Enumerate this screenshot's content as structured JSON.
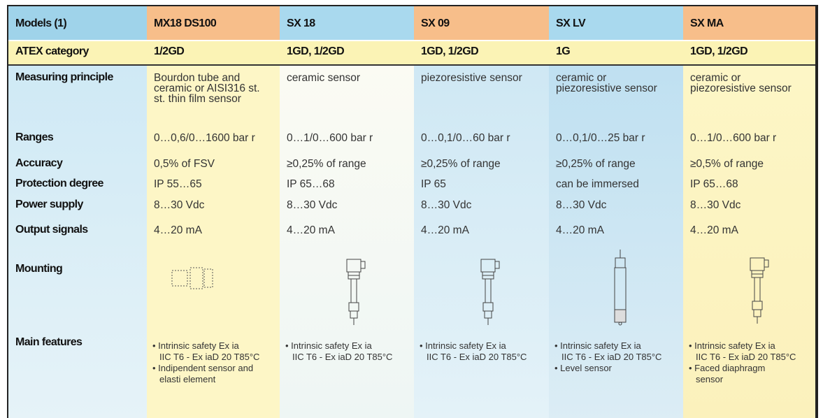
{
  "table": {
    "header": [
      "Models (1)",
      "MX18 DS100",
      "SX 18",
      "SX 09",
      "SX LV",
      "SX MA"
    ],
    "atex": [
      "ATEX category",
      "1/2GD",
      "1GD, 1/2GD",
      "1GD, 1/2GD",
      "1G",
      "1GD, 1/2GD"
    ],
    "rows": [
      {
        "label": "Measuring principle",
        "cells": [
          [
            "Bourdon tube and",
            "ceramic or AISI316 st.",
            "st. thin film sensor"
          ],
          [
            "ceramic sensor"
          ],
          [
            "piezoresistive sensor"
          ],
          [
            "ceramic or",
            "piezoresistive sensor"
          ],
          [
            "ceramic or",
            "piezoresistive sensor"
          ]
        ]
      },
      {
        "label": "Ranges",
        "cells": [
          [
            "0…0,6/0…1600 bar r"
          ],
          [
            "0…1/0…600 bar r"
          ],
          [
            "0…0,1/0…60 bar r"
          ],
          [
            "0…0,1/0…25 bar r"
          ],
          [
            "0…1/0…600 bar r"
          ]
        ]
      },
      {
        "label": "Accuracy",
        "cells": [
          [
            "0,5% of FSV"
          ],
          [
            "≥0,25% of range"
          ],
          [
            "≥0,25% of range"
          ],
          [
            "≥0,25% of range"
          ],
          [
            "≥0,5% of range"
          ]
        ]
      },
      {
        "label": "Protection degree",
        "cells": [
          [
            "IP 55…65"
          ],
          [
            "IP 65…68"
          ],
          [
            "IP 65"
          ],
          [
            "can be immersed"
          ],
          [
            "IP 65…68"
          ]
        ]
      },
      {
        "label": "Power supply",
        "cells": [
          [
            "8…30 Vdc"
          ],
          [
            "8…30 Vdc"
          ],
          [
            "8…30 Vdc"
          ],
          [
            "8…30 Vdc"
          ],
          [
            "8…30 Vdc"
          ]
        ]
      },
      {
        "label": "Output signals",
        "cells": [
          [
            "4…20 mA"
          ],
          [
            "4…20 mA"
          ],
          [
            "4…20 mA"
          ],
          [
            "4…20 mA"
          ],
          [
            "4…20 mA"
          ]
        ]
      },
      {
        "label": "Mounting"
      }
    ],
    "features": {
      "label": "Main features",
      "cells": [
        [
          [
            "• Intrinsic safety Ex ia",
            "IIC T6 - Ex iaD 20 T85°C"
          ],
          [
            "• Indipendent sensor and",
            "elasti element"
          ]
        ],
        [
          [
            "• Intrinsic safety Ex ia",
            "IIC T6 - Ex iaD 20 T85°C"
          ]
        ],
        [
          [
            "• Intrinsic safety Ex ia",
            "IIC T6 - Ex iaD 20 T85°C"
          ]
        ],
        [
          [
            "• Intrinsic safety Ex ia",
            "IIC T6 - Ex iaD 20 T85°C"
          ],
          [
            "• Level sensor"
          ]
        ],
        [
          [
            "• Intrinsic safety Ex ia",
            "IIC T6 - Ex iaD 20 T85°C"
          ],
          [
            "• Faced diaphragm",
            "sensor"
          ]
        ]
      ]
    }
  }
}
